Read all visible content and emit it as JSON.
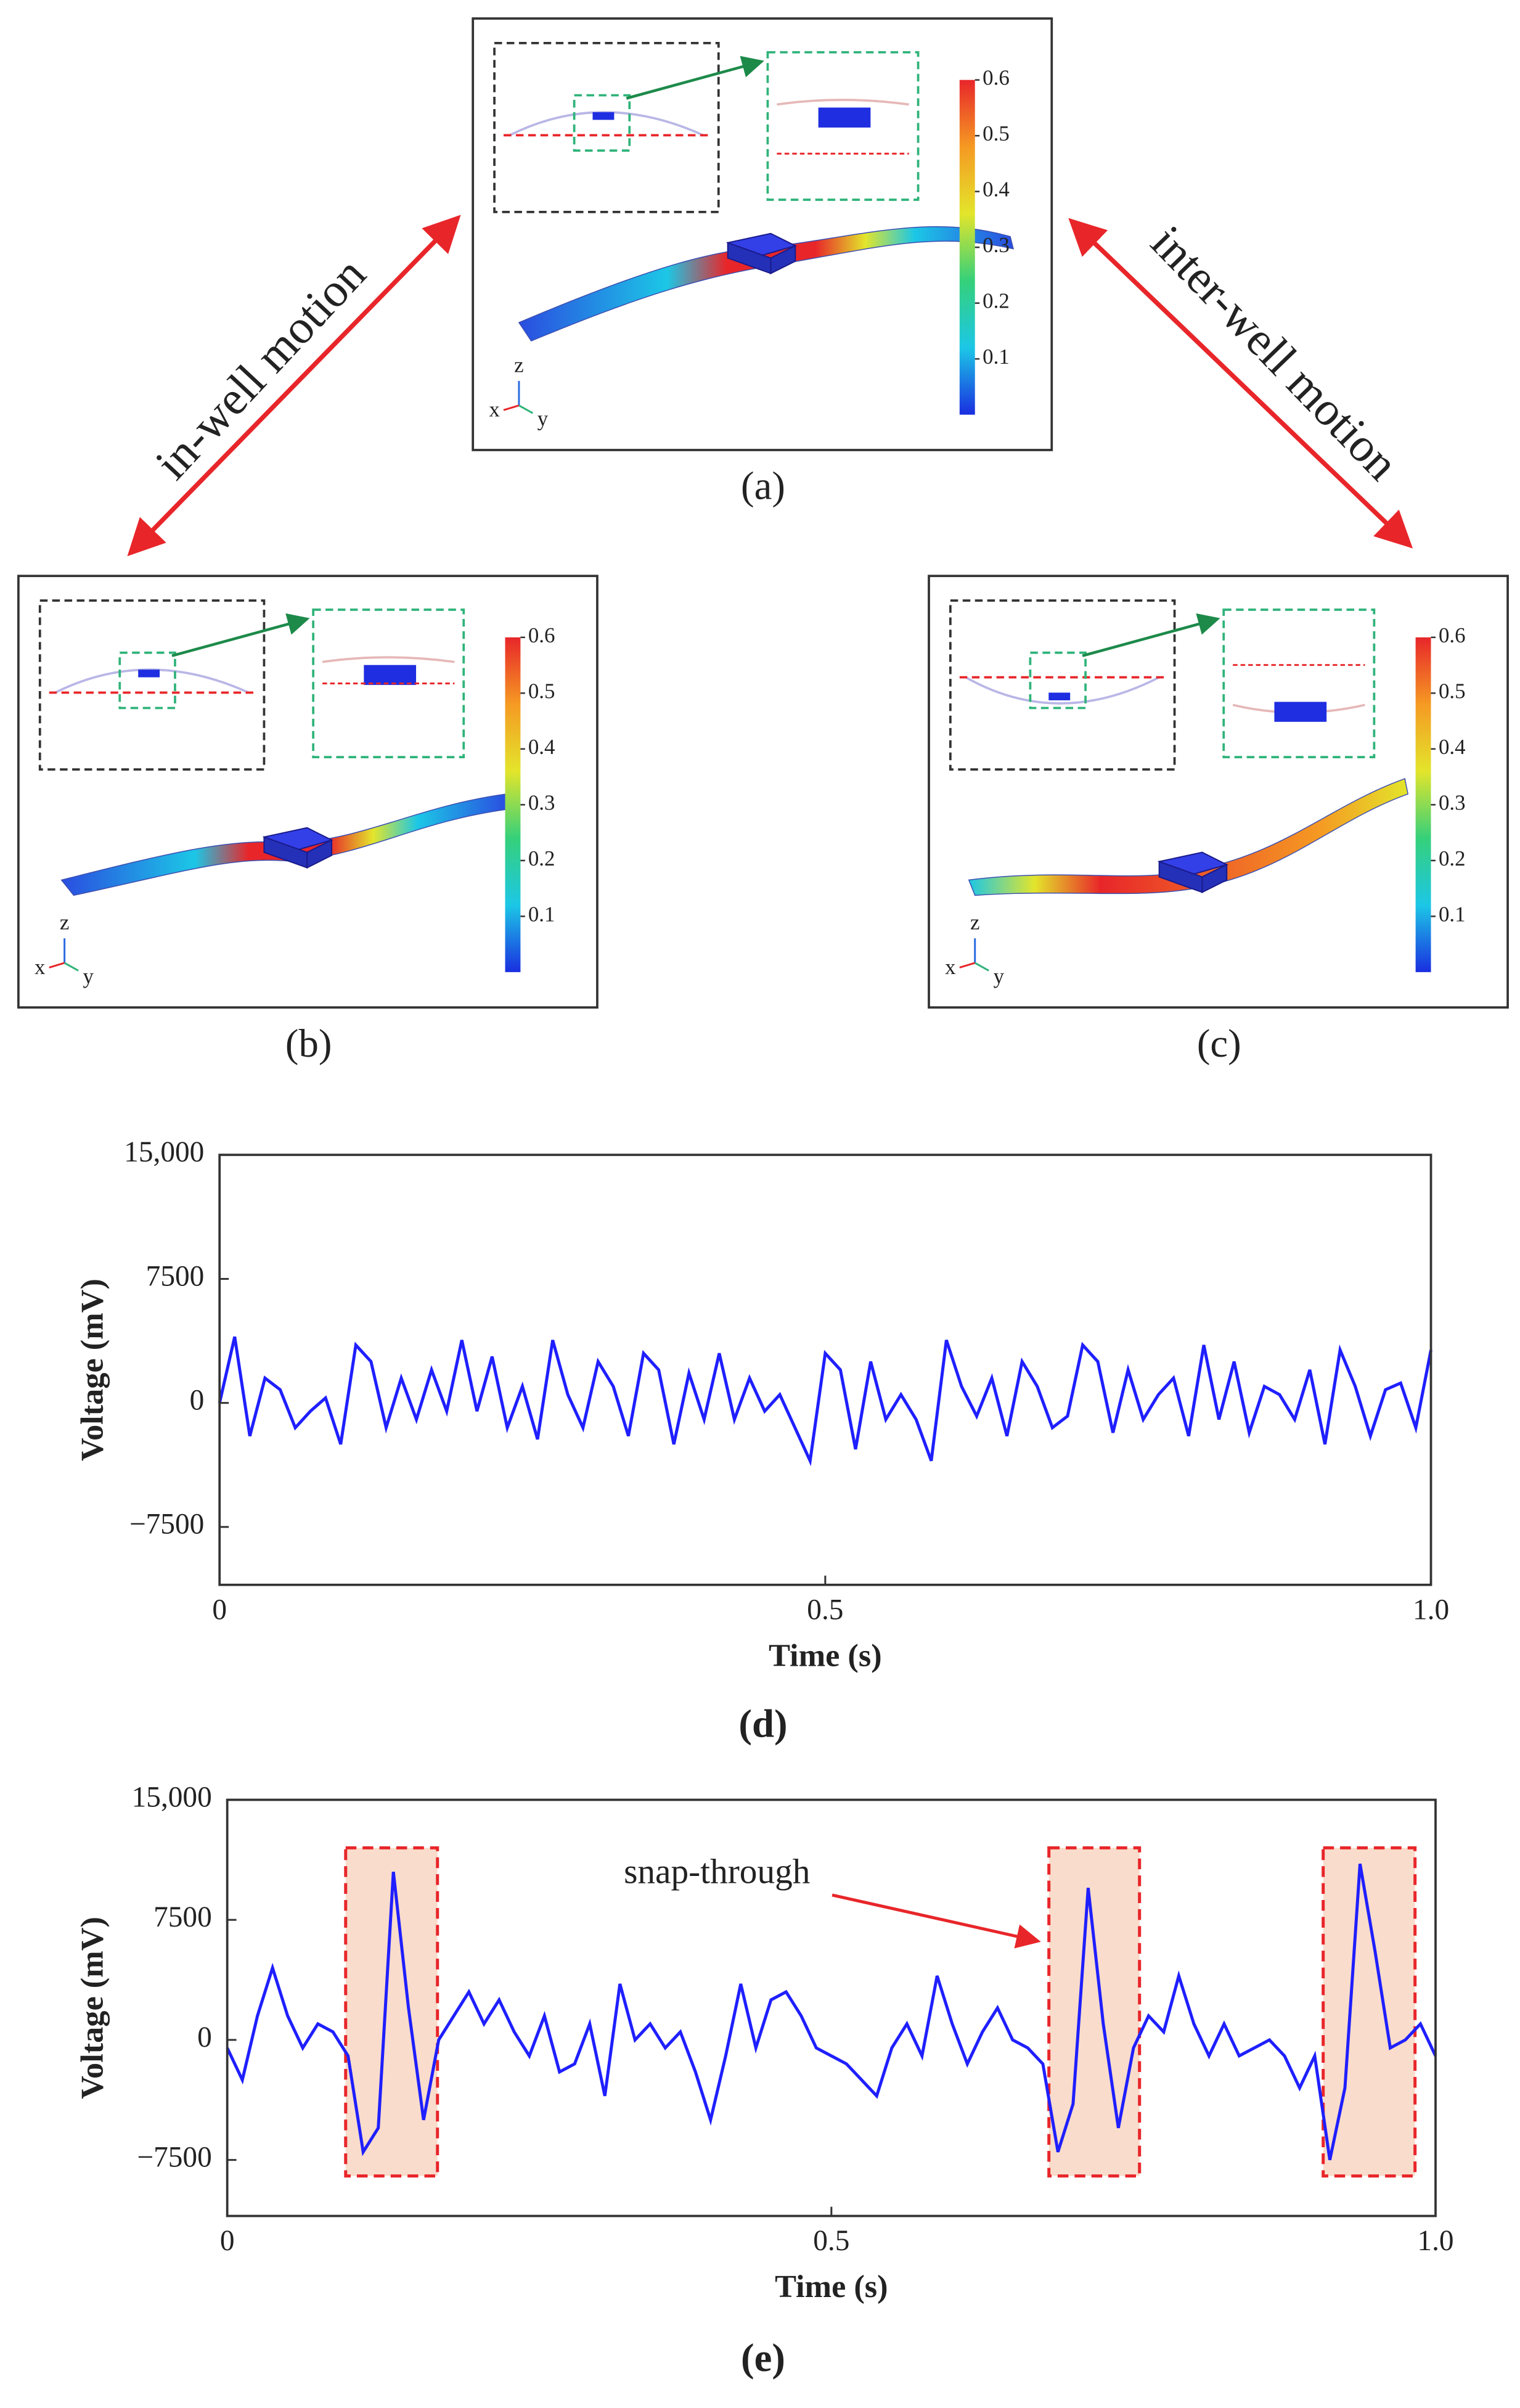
{
  "motion_labels": [
    "in-well motion",
    "inter-well motion"
  ],
  "panels": [
    {
      "label": "(a)",
      "colorbar_lim": [
        0,
        0.6
      ],
      "colorbar_ticks": [
        0.6,
        0.5,
        0.4,
        0.3,
        0.2,
        0.1
      ],
      "axis_labels": [
        "z",
        "x",
        "y"
      ]
    },
    {
      "label": "(b)",
      "colorbar_lim": [
        0,
        0.6
      ],
      "colorbar_ticks": [
        0.6,
        0.5,
        0.4,
        0.3,
        0.2,
        0.1
      ],
      "axis_labels": [
        "z",
        "x",
        "y"
      ]
    },
    {
      "label": "(c)",
      "colorbar_lim": [
        0,
        0.6
      ],
      "colorbar_ticks": [
        0.6,
        0.5,
        0.4,
        0.3,
        0.2,
        0.1
      ],
      "axis_labels": [
        "z",
        "x",
        "y"
      ]
    }
  ],
  "chart_data": [
    {
      "type": "line",
      "label": "(d)",
      "xlabel": "Time (s)",
      "ylabel": "Voltage (mV)",
      "color": "#1f1fff",
      "xlim": [
        0,
        1
      ],
      "ylim": [
        -11000,
        15000
      ],
      "xticks": [
        0,
        0.5,
        {
          "value": 1,
          "label": "1.0"
        }
      ],
      "yticks": [
        {
          "value": 15000,
          "label": "15,000"
        },
        7500,
        0,
        {
          "value": -7500,
          "label": "−7500"
        }
      ],
      "x": [
        0,
        0.0125,
        0.025,
        0.0375,
        0.05,
        0.0625,
        0.075,
        0.0875,
        0.1,
        0.1125,
        0.125,
        0.1375,
        0.15,
        0.1625,
        0.175,
        0.1875,
        0.2,
        0.2125,
        0.225,
        0.2375,
        0.25,
        0.2625,
        0.275,
        0.2875,
        0.3,
        0.3125,
        0.325,
        0.3375,
        0.35,
        0.3625,
        0.375,
        0.3875,
        0.4,
        0.4125,
        0.425,
        0.4375,
        0.45,
        0.4625,
        0.475,
        0.4875,
        0.5,
        0.5125,
        0.525,
        0.5375,
        0.55,
        0.5625,
        0.575,
        0.5875,
        0.6,
        0.6125,
        0.625,
        0.6375,
        0.65,
        0.6625,
        0.675,
        0.6875,
        0.7,
        0.7125,
        0.725,
        0.7375,
        0.75,
        0.7625,
        0.775,
        0.7875,
        0.8,
        0.8125,
        0.825,
        0.8375,
        0.85,
        0.8625,
        0.875,
        0.8875,
        0.9,
        0.9125,
        0.925,
        0.9375,
        0.95,
        0.9625,
        0.975,
        0.9875,
        1
      ],
      "values": [
        0,
        4000,
        -2000,
        1500,
        800,
        -1500,
        -500,
        300,
        -2500,
        3500,
        2500,
        -1500,
        1500,
        -1000,
        2000,
        -500,
        3800,
        -500,
        2800,
        -1500,
        1000,
        -2200,
        3800,
        500,
        -1500,
        2500,
        1000,
        -2000,
        3000,
        2000,
        -2500,
        1800,
        -1000,
        3000,
        -1000,
        1500,
        -500,
        500,
        -1500,
        -3500,
        3000,
        2000,
        -2800,
        2500,
        -1000,
        500,
        -1000,
        -3500,
        3800,
        1000,
        -800,
        1500,
        -2000,
        2500,
        1000,
        -1500,
        -800,
        3500,
        2500,
        -1800,
        2000,
        -1000,
        500,
        1500,
        -2000,
        3500,
        -1000,
        2500,
        -1800,
        1000,
        500,
        -1000,
        2000,
        -2500,
        3200,
        1000,
        -2000,
        800,
        1200,
        -1500,
        3200
      ]
    },
    {
      "type": "line",
      "label": "(e)",
      "xlabel": "Time (s)",
      "ylabel": "Voltage (mV)",
      "color": "#1f1fff",
      "xlim": [
        0,
        1
      ],
      "ylim": [
        -11000,
        15000
      ],
      "xticks": [
        0,
        0.5,
        {
          "value": 1,
          "label": "1.0"
        }
      ],
      "yticks": [
        {
          "value": 15000,
          "label": "15,000"
        },
        7500,
        0,
        {
          "value": -7500,
          "label": "−7500"
        }
      ],
      "annotation": "snap-through",
      "highlights": [
        {
          "x": [
            0.098,
            0.174
          ],
          "y": [
            -8500,
            12000
          ]
        },
        {
          "x": [
            0.68,
            0.755
          ],
          "y": [
            -8500,
            12000
          ]
        },
        {
          "x": [
            0.907,
            0.983
          ],
          "y": [
            -8500,
            12000
          ]
        }
      ],
      "x": [
        0,
        0.0125,
        0.025,
        0.0375,
        0.05,
        0.0625,
        0.075,
        0.0875,
        0.1,
        0.1125,
        0.125,
        0.1375,
        0.15,
        0.1625,
        0.175,
        0.1875,
        0.2,
        0.2125,
        0.225,
        0.2375,
        0.25,
        0.2625,
        0.275,
        0.2875,
        0.3,
        0.3125,
        0.325,
        0.3375,
        0.35,
        0.3625,
        0.375,
        0.3875,
        0.4,
        0.4125,
        0.425,
        0.4375,
        0.45,
        0.4625,
        0.475,
        0.4875,
        0.5,
        0.5125,
        0.525,
        0.5375,
        0.55,
        0.5625,
        0.575,
        0.5875,
        0.6,
        0.6125,
        0.625,
        0.6375,
        0.65,
        0.6625,
        0.675,
        0.6875,
        0.7,
        0.7125,
        0.725,
        0.7375,
        0.75,
        0.7625,
        0.775,
        0.7875,
        0.8,
        0.8125,
        0.825,
        0.8375,
        0.85,
        0.8625,
        0.875,
        0.8875,
        0.9,
        0.9125,
        0.925,
        0.9375,
        0.95,
        0.9625,
        0.975,
        0.9875,
        1
      ],
      "values": [
        -500,
        -2500,
        1500,
        4500,
        1500,
        -500,
        1000,
        500,
        -1000,
        -7000,
        -5500,
        10500,
        2000,
        -5000,
        0,
        1500,
        3000,
        1000,
        2500,
        500,
        -1000,
        1500,
        -2000,
        -1500,
        1000,
        -3500,
        3500,
        0,
        1000,
        -500,
        500,
        -2000,
        -5000,
        -1000,
        3500,
        -500,
        2500,
        3000,
        1500,
        -500,
        -1000,
        -1500,
        -2500,
        -3500,
        -500,
        1000,
        -1000,
        4000,
        1000,
        -1500,
        500,
        2000,
        0,
        -500,
        -1500,
        -7000,
        -4000,
        9500,
        1000,
        -5500,
        -500,
        1500,
        500,
        4000,
        1000,
        -1000,
        1000,
        -1000,
        -500,
        0,
        -1000,
        -3000,
        -1000,
        -7500,
        -3000,
        11000,
        5500,
        -500,
        0,
        1000,
        -1000
      ]
    }
  ]
}
